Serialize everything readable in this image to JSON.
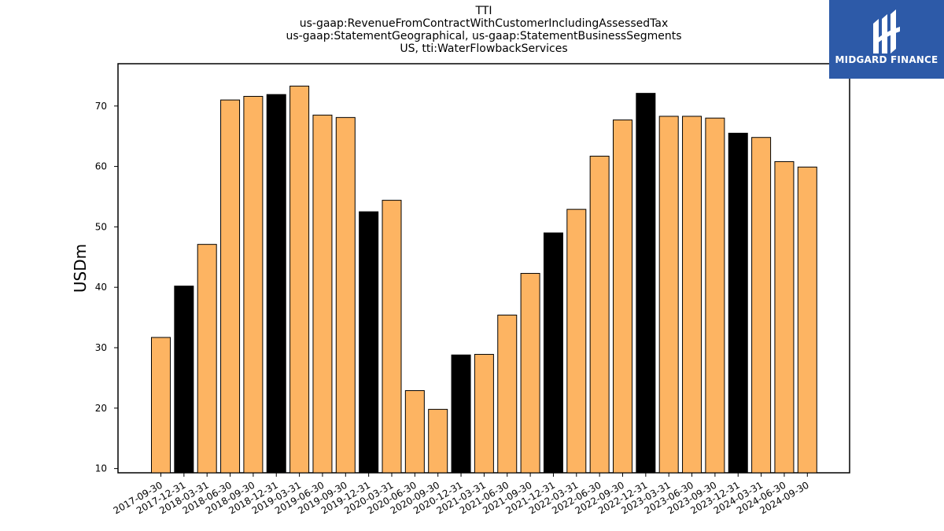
{
  "chart_data": {
    "type": "bar",
    "title": "TTI",
    "subtitle_lines": [
      "us-gaap:RevenueFromContractWithCustomerIncludingAssessedTax",
      "us-gaap:StatementGeographical, us-gaap:StatementBusinessSegments",
      "US, tti:WaterFlowbackServices"
    ],
    "ylabel": "USDm",
    "xlabel": "",
    "ylim": [
      9.3,
      77
    ],
    "yticks": [
      10,
      20,
      30,
      40,
      50,
      60,
      70
    ],
    "grid": false,
    "categories": [
      "2017-09-30",
      "2017-12-31",
      "2018-03-31",
      "2018-06-30",
      "2018-09-30",
      "2018-12-31",
      "2019-03-31",
      "2019-06-30",
      "2019-09-30",
      "2019-12-31",
      "2020-03-31",
      "2020-06-30",
      "2020-09-30",
      "2020-12-31",
      "2021-03-31",
      "2021-06-30",
      "2021-09-30",
      "2021-12-31",
      "2022-03-31",
      "2022-06-30",
      "2022-09-30",
      "2022-12-31",
      "2023-03-31",
      "2023-06-30",
      "2023-09-30",
      "2023-12-31",
      "2024-03-31",
      "2024-06-30",
      "2024-09-30"
    ],
    "values": [
      31.7,
      40.2,
      47.1,
      71.0,
      71.6,
      71.9,
      73.3,
      68.5,
      68.1,
      52.5,
      54.4,
      22.9,
      19.8,
      28.8,
      28.9,
      35.4,
      42.3,
      49.0,
      52.9,
      61.7,
      67.7,
      72.1,
      68.3,
      68.3,
      68.0,
      65.5,
      64.8,
      60.8,
      59.9
    ],
    "colors": {
      "quarter": "#fdb462",
      "year_end": "#000000",
      "edge": "#000000"
    }
  },
  "logo": {
    "text": "MIDGARD FINANCE",
    "background": "#2d5aa8"
  }
}
